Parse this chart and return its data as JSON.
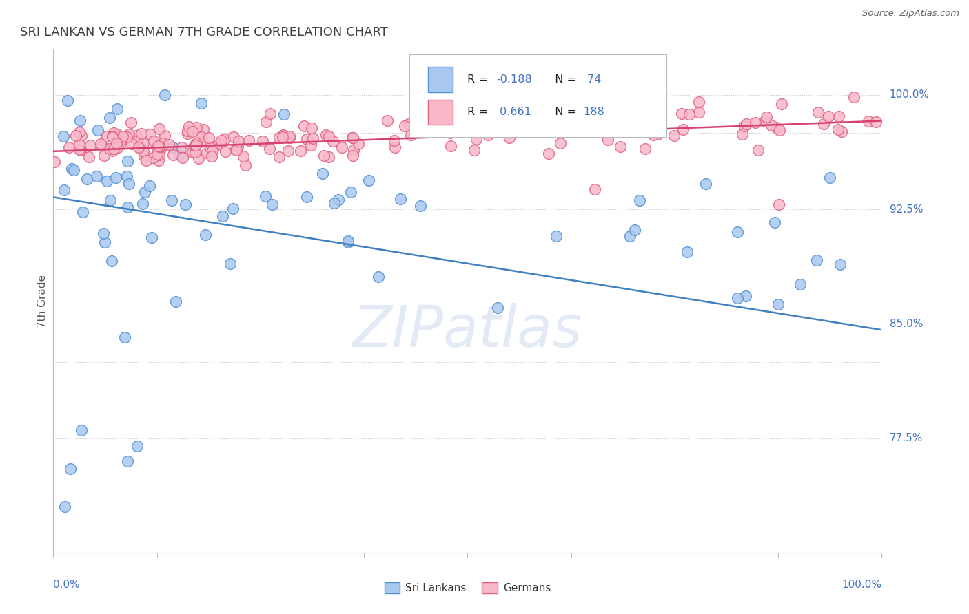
{
  "title": "SRI LANKAN VS GERMAN 7TH GRADE CORRELATION CHART",
  "source": "Source: ZipAtlas.com",
  "ylabel": "7th Grade",
  "R_blue": -0.188,
  "N_blue": 74,
  "R_pink": 0.661,
  "N_pink": 188,
  "blue_fill": "#A8C8F0",
  "blue_edge": "#5090D0",
  "pink_fill": "#F8B8C8",
  "pink_edge": "#E06080",
  "blue_line_color": "#4080C0",
  "pink_line_color": "#D84070",
  "title_color": "#404040",
  "axis_label_color": "#4472C4",
  "legend_R_color": "#4472C4",
  "legend_N_color": "#4472C4",
  "watermark": "ZIPatlas",
  "xlim": [
    0.0,
    1.0
  ],
  "ylim": [
    0.7,
    1.03
  ],
  "grid_lines_y": [
    0.775,
    0.825,
    0.875,
    0.925,
    0.975,
    1.0
  ],
  "right_labels": {
    "1.0": "100.0%",
    "0.925": "92.5%",
    "0.85": "85.0%",
    "0.775": "77.5%"
  }
}
